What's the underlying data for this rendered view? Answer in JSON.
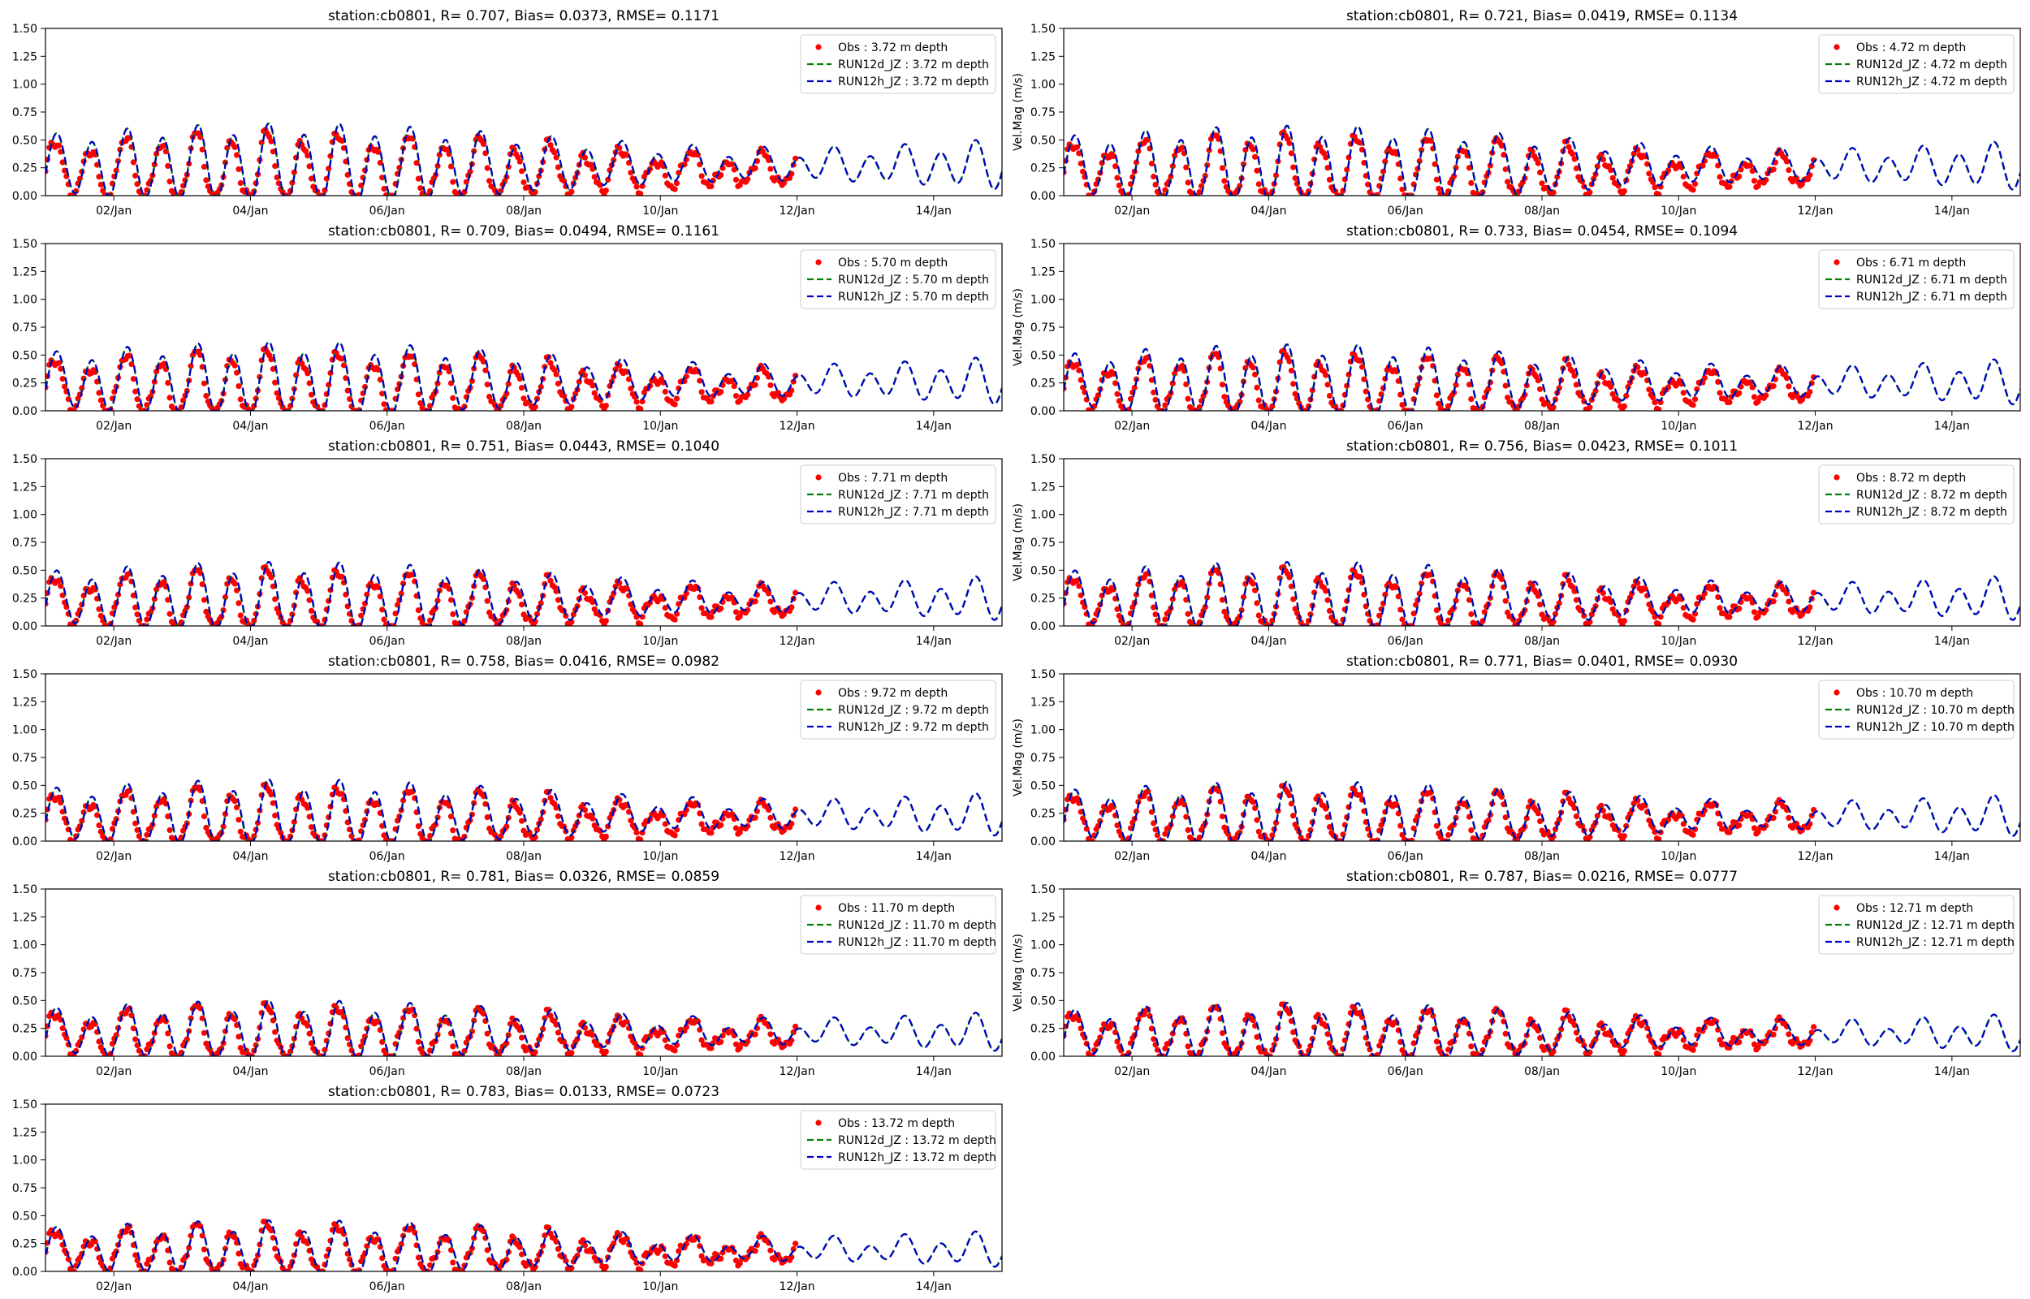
{
  "chart_data": [
    {
      "type": "line",
      "title": "station:cb0801, R= 0.707, Bias= 0.0373, RMSE= 0.1171",
      "xlabel": "",
      "ylabel": "",
      "ylim": [
        0,
        1.5
      ],
      "yticks": [
        "0.00",
        "0.25",
        "0.50",
        "0.75",
        "1.00",
        "1.25",
        "1.50"
      ],
      "xticks": [
        "02/Jan",
        "04/Jan",
        "06/Jan",
        "08/Jan",
        "10/Jan",
        "12/Jan",
        "14/Jan"
      ],
      "xlim_days": [
        1.0,
        15.0
      ],
      "grid": false,
      "legend_loc": "upper-right",
      "series": [
        {
          "name": "Obs : 3.72 m depth",
          "style": "points",
          "color": "#ff0000",
          "amp": 0.28,
          "offset": 0.22,
          "end_day": 12.0
        },
        {
          "name": "RUN12d_JZ : 3.72 m depth",
          "style": "dashed",
          "color": "#008000",
          "amp": 0.3,
          "offset": 0.27,
          "end_day": 15.0
        },
        {
          "name": "RUN12h_JZ : 3.72 m depth",
          "style": "dashed",
          "color": "#0000cc",
          "amp": 0.3,
          "offset": 0.27,
          "end_day": 15.0
        }
      ]
    },
    {
      "type": "line",
      "title": "station:cb0801, R= 0.721, Bias= 0.0419, RMSE= 0.1134",
      "xlabel": "",
      "ylabel": "Vel.Mag (m/s)",
      "ylim": [
        0,
        1.5
      ],
      "yticks": [
        "0.00",
        "0.25",
        "0.50",
        "0.75",
        "1.00",
        "1.25",
        "1.50"
      ],
      "xticks": [
        "02/Jan",
        "04/Jan",
        "06/Jan",
        "08/Jan",
        "10/Jan",
        "12/Jan",
        "14/Jan"
      ],
      "xlim_days": [
        1.0,
        15.0
      ],
      "grid": false,
      "legend_loc": "upper-right",
      "series": [
        {
          "name": "Obs : 4.72 m depth",
          "style": "points",
          "color": "#ff0000",
          "amp": 0.27,
          "offset": 0.21,
          "end_day": 12.0
        },
        {
          "name": "RUN12d_JZ : 4.72 m depth",
          "style": "dashed",
          "color": "#008000",
          "amp": 0.29,
          "offset": 0.26,
          "end_day": 15.0
        },
        {
          "name": "RUN12h_JZ : 4.72 m depth",
          "style": "dashed",
          "color": "#0000cc",
          "amp": 0.29,
          "offset": 0.26,
          "end_day": 15.0
        }
      ]
    },
    {
      "type": "line",
      "title": "station:cb0801, R= 0.709, Bias= 0.0494, RMSE= 0.1161",
      "xlabel": "",
      "ylabel": "",
      "ylim": [
        0,
        1.5
      ],
      "yticks": [
        "0.00",
        "0.25",
        "0.50",
        "0.75",
        "1.00",
        "1.25",
        "1.50"
      ],
      "xticks": [
        "02/Jan",
        "04/Jan",
        "06/Jan",
        "08/Jan",
        "10/Jan",
        "12/Jan",
        "14/Jan"
      ],
      "xlim_days": [
        1.0,
        15.0
      ],
      "grid": false,
      "legend_loc": "upper-right",
      "series": [
        {
          "name": "Obs : 5.70 m depth",
          "style": "points",
          "color": "#ff0000",
          "amp": 0.26,
          "offset": 0.21,
          "end_day": 12.0
        },
        {
          "name": "RUN12d_JZ : 5.70 m depth",
          "style": "dashed",
          "color": "#008000",
          "amp": 0.28,
          "offset": 0.26,
          "end_day": 15.0
        },
        {
          "name": "RUN12h_JZ : 5.70 m depth",
          "style": "dashed",
          "color": "#0000cc",
          "amp": 0.28,
          "offset": 0.26,
          "end_day": 15.0
        }
      ]
    },
    {
      "type": "line",
      "title": "station:cb0801, R= 0.733, Bias= 0.0454, RMSE= 0.1094",
      "xlabel": "",
      "ylabel": "Vel.Mag (m/s)",
      "ylim": [
        0,
        1.5
      ],
      "yticks": [
        "0.00",
        "0.25",
        "0.50",
        "0.75",
        "1.00",
        "1.25",
        "1.50"
      ],
      "xticks": [
        "02/Jan",
        "04/Jan",
        "06/Jan",
        "08/Jan",
        "10/Jan",
        "12/Jan",
        "14/Jan"
      ],
      "xlim_days": [
        1.0,
        15.0
      ],
      "grid": false,
      "legend_loc": "upper-right",
      "series": [
        {
          "name": "Obs : 6.71 m depth",
          "style": "points",
          "color": "#ff0000",
          "amp": 0.25,
          "offset": 0.2,
          "end_day": 12.0
        },
        {
          "name": "RUN12d_JZ : 6.71 m depth",
          "style": "dashed",
          "color": "#008000",
          "amp": 0.27,
          "offset": 0.25,
          "end_day": 15.0
        },
        {
          "name": "RUN12h_JZ : 6.71 m depth",
          "style": "dashed",
          "color": "#0000cc",
          "amp": 0.27,
          "offset": 0.25,
          "end_day": 15.0
        }
      ]
    },
    {
      "type": "line",
      "title": "station:cb0801, R= 0.751, Bias= 0.0443, RMSE= 0.1040",
      "xlabel": "",
      "ylabel": "",
      "ylim": [
        0,
        1.5
      ],
      "yticks": [
        "0.00",
        "0.25",
        "0.50",
        "0.75",
        "1.00",
        "1.25",
        "1.50"
      ],
      "xticks": [
        "02/Jan",
        "04/Jan",
        "06/Jan",
        "08/Jan",
        "10/Jan",
        "12/Jan",
        "14/Jan"
      ],
      "xlim_days": [
        1.0,
        15.0
      ],
      "grid": false,
      "legend_loc": "upper-right",
      "series": [
        {
          "name": "Obs : 7.71 m depth",
          "style": "points",
          "color": "#ff0000",
          "amp": 0.24,
          "offset": 0.2,
          "end_day": 12.0
        },
        {
          "name": "RUN12d_JZ : 7.71 m depth",
          "style": "dashed",
          "color": "#008000",
          "amp": 0.26,
          "offset": 0.24,
          "end_day": 15.0
        },
        {
          "name": "RUN12h_JZ : 7.71 m depth",
          "style": "dashed",
          "color": "#0000cc",
          "amp": 0.26,
          "offset": 0.24,
          "end_day": 15.0
        }
      ]
    },
    {
      "type": "line",
      "title": "station:cb0801, R= 0.756, Bias= 0.0423, RMSE= 0.1011",
      "xlabel": "",
      "ylabel": "Vel.Mag (m/s)",
      "ylim": [
        0,
        1.5
      ],
      "yticks": [
        "0.00",
        "0.25",
        "0.50",
        "0.75",
        "1.00",
        "1.25",
        "1.50"
      ],
      "xticks": [
        "02/Jan",
        "04/Jan",
        "06/Jan",
        "08/Jan",
        "10/Jan",
        "12/Jan",
        "14/Jan"
      ],
      "xlim_days": [
        1.0,
        15.0
      ],
      "grid": false,
      "legend_loc": "upper-right",
      "series": [
        {
          "name": "Obs : 8.72 m depth",
          "style": "points",
          "color": "#ff0000",
          "amp": 0.24,
          "offset": 0.2,
          "end_day": 12.0
        },
        {
          "name": "RUN12d_JZ : 8.72 m depth",
          "style": "dashed",
          "color": "#008000",
          "amp": 0.26,
          "offset": 0.24,
          "end_day": 15.0
        },
        {
          "name": "RUN12h_JZ : 8.72 m depth",
          "style": "dashed",
          "color": "#0000cc",
          "amp": 0.26,
          "offset": 0.24,
          "end_day": 15.0
        }
      ]
    },
    {
      "type": "line",
      "title": "station:cb0801, R= 0.758, Bias= 0.0416, RMSE= 0.0982",
      "xlabel": "",
      "ylabel": "",
      "ylim": [
        0,
        1.5
      ],
      "yticks": [
        "0.00",
        "0.25",
        "0.50",
        "0.75",
        "1.00",
        "1.25",
        "1.50"
      ],
      "xticks": [
        "02/Jan",
        "04/Jan",
        "06/Jan",
        "08/Jan",
        "10/Jan",
        "12/Jan",
        "14/Jan"
      ],
      "xlim_days": [
        1.0,
        15.0
      ],
      "grid": false,
      "legend_loc": "upper-right",
      "series": [
        {
          "name": "Obs : 9.72 m depth",
          "style": "points",
          "color": "#ff0000",
          "amp": 0.23,
          "offset": 0.19,
          "end_day": 12.0
        },
        {
          "name": "RUN12d_JZ : 9.72 m depth",
          "style": "dashed",
          "color": "#008000",
          "amp": 0.25,
          "offset": 0.23,
          "end_day": 15.0
        },
        {
          "name": "RUN12h_JZ : 9.72 m depth",
          "style": "dashed",
          "color": "#0000cc",
          "amp": 0.25,
          "offset": 0.23,
          "end_day": 15.0
        }
      ]
    },
    {
      "type": "line",
      "title": "station:cb0801, R= 0.771, Bias= 0.0401, RMSE= 0.0930",
      "xlabel": "",
      "ylabel": "Vel.Mag (m/s)",
      "ylim": [
        0,
        1.5
      ],
      "yticks": [
        "0.00",
        "0.25",
        "0.50",
        "0.75",
        "1.00",
        "1.25",
        "1.50"
      ],
      "xticks": [
        "02/Jan",
        "04/Jan",
        "06/Jan",
        "08/Jan",
        "10/Jan",
        "12/Jan",
        "14/Jan"
      ],
      "xlim_days": [
        1.0,
        15.0
      ],
      "grid": false,
      "legend_loc": "upper-right",
      "series": [
        {
          "name": "Obs : 10.70 m depth",
          "style": "points",
          "color": "#ff0000",
          "amp": 0.22,
          "offset": 0.19,
          "end_day": 12.0
        },
        {
          "name": "RUN12d_JZ : 10.70 m depth",
          "style": "dashed",
          "color": "#008000",
          "amp": 0.24,
          "offset": 0.22,
          "end_day": 15.0
        },
        {
          "name": "RUN12h_JZ : 10.70 m depth",
          "style": "dashed",
          "color": "#0000cc",
          "amp": 0.24,
          "offset": 0.22,
          "end_day": 15.0
        }
      ]
    },
    {
      "type": "line",
      "title": "station:cb0801, R= 0.781, Bias= 0.0326, RMSE= 0.0859",
      "xlabel": "",
      "ylabel": "",
      "ylim": [
        0,
        1.5
      ],
      "yticks": [
        "0.00",
        "0.25",
        "0.50",
        "0.75",
        "1.00",
        "1.25",
        "1.50"
      ],
      "xticks": [
        "02/Jan",
        "04/Jan",
        "06/Jan",
        "08/Jan",
        "10/Jan",
        "12/Jan",
        "14/Jan"
      ],
      "xlim_days": [
        1.0,
        15.0
      ],
      "grid": false,
      "legend_loc": "upper-right",
      "series": [
        {
          "name": "Obs : 11.70 m depth",
          "style": "points",
          "color": "#ff0000",
          "amp": 0.21,
          "offset": 0.18,
          "end_day": 12.0
        },
        {
          "name": "RUN12d_JZ : 11.70 m depth",
          "style": "dashed",
          "color": "#008000",
          "amp": 0.22,
          "offset": 0.21,
          "end_day": 15.0
        },
        {
          "name": "RUN12h_JZ : 11.70 m depth",
          "style": "dashed",
          "color": "#0000cc",
          "amp": 0.22,
          "offset": 0.21,
          "end_day": 15.0
        }
      ]
    },
    {
      "type": "line",
      "title": "station:cb0801, R= 0.787, Bias= 0.0216, RMSE= 0.0777",
      "xlabel": "",
      "ylabel": "Vel.Mag (m/s)",
      "ylim": [
        0,
        1.5
      ],
      "yticks": [
        "0.00",
        "0.25",
        "0.50",
        "0.75",
        "1.00",
        "1.25",
        "1.50"
      ],
      "xticks": [
        "02/Jan",
        "04/Jan",
        "06/Jan",
        "08/Jan",
        "10/Jan",
        "12/Jan",
        "14/Jan"
      ],
      "xlim_days": [
        1.0,
        15.0
      ],
      "grid": false,
      "legend_loc": "upper-right",
      "series": [
        {
          "name": "Obs : 12.71 m depth",
          "style": "points",
          "color": "#ff0000",
          "amp": 0.2,
          "offset": 0.18,
          "end_day": 12.0
        },
        {
          "name": "RUN12d_JZ : 12.71 m depth",
          "style": "dashed",
          "color": "#008000",
          "amp": 0.21,
          "offset": 0.2,
          "end_day": 15.0
        },
        {
          "name": "RUN12h_JZ : 12.71 m depth",
          "style": "dashed",
          "color": "#0000cc",
          "amp": 0.21,
          "offset": 0.2,
          "end_day": 15.0
        }
      ]
    },
    {
      "type": "line",
      "title": "station:cb0801, R= 0.783, Bias= 0.0133, RMSE= 0.0723",
      "xlabel": "",
      "ylabel": "",
      "ylim": [
        0,
        1.5
      ],
      "yticks": [
        "0.00",
        "0.25",
        "0.50",
        "0.75",
        "1.00",
        "1.25",
        "1.50"
      ],
      "xticks": [
        "02/Jan",
        "04/Jan",
        "06/Jan",
        "08/Jan",
        "10/Jan",
        "12/Jan",
        "14/Jan"
      ],
      "xlim_days": [
        1.0,
        15.0
      ],
      "grid": false,
      "legend_loc": "upper-right",
      "series": [
        {
          "name": "Obs : 13.72 m depth",
          "style": "points",
          "color": "#ff0000",
          "amp": 0.19,
          "offset": 0.17,
          "end_day": 12.0
        },
        {
          "name": "RUN12d_JZ : 13.72 m depth",
          "style": "dashed",
          "color": "#008000",
          "amp": 0.2,
          "offset": 0.19,
          "end_day": 15.0
        },
        {
          "name": "RUN12h_JZ : 13.72 m depth",
          "style": "dashed",
          "color": "#0000cc",
          "amp": 0.2,
          "offset": 0.19,
          "end_day": 15.0
        }
      ]
    }
  ]
}
